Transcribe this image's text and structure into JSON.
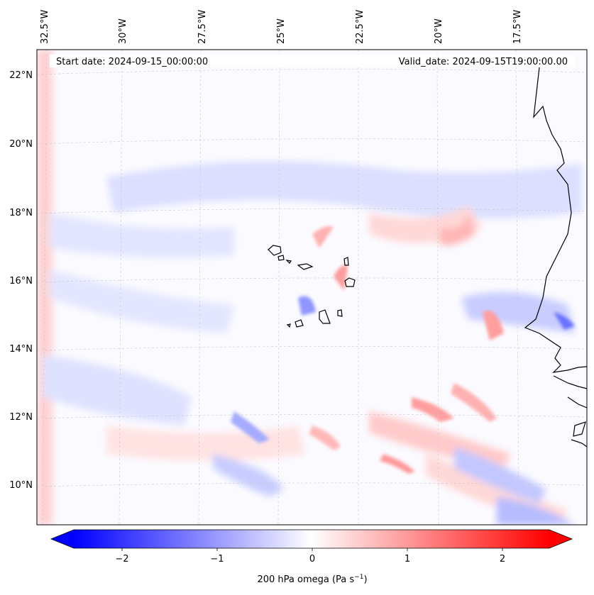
{
  "map": {
    "start_date": "Start date: 2024-09-15_00:00:00",
    "valid_date": "Valid_date: 2024-09-15T19:00:00.00",
    "lon_labels": [
      "32.5°W",
      "30°W",
      "27.5°W",
      "25°W",
      "22.5°W",
      "20°W",
      "17.5°W"
    ],
    "lat_labels": [
      "22°N",
      "20°N",
      "18°N",
      "16°N",
      "14°N",
      "12°N",
      "10°N"
    ],
    "coastline_color": "#000000",
    "gridline_color": "#c8c8c8"
  },
  "colorbar": {
    "ticks": [
      "−2",
      "−1",
      "0",
      "1",
      "2"
    ],
    "label_prefix": "200 hPa omega (Pa s",
    "label_sup": "−1",
    "label_suffix": ")",
    "cmap": "bwr",
    "range": [
      -2.7,
      2.7
    ],
    "low_color": "#0000ff",
    "mid_color": "#ffffff",
    "high_color": "#ff0000"
  }
}
